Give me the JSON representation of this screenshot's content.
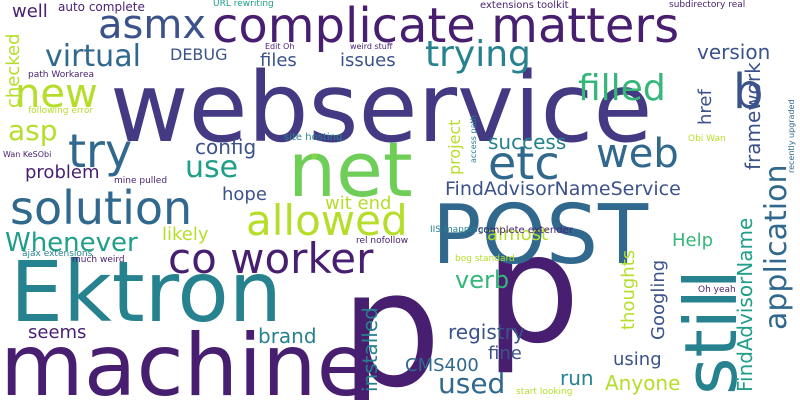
{
  "palette": {
    "purple": "#481f70",
    "indigo": "#443983",
    "blue": "#3b528b",
    "slate": "#31688e",
    "teal": "#26828e",
    "sea": "#1f9e89",
    "green": "#35b779",
    "lime": "#6ece58",
    "yellowgreen": "#b5de2b",
    "yellow": "#d6e21a"
  },
  "words": [
    {
      "text": "p",
      "color": "#481f70"
    },
    {
      "text": "p",
      "color": "#481f70"
    },
    {
      "text": "webservice",
      "color": "#443983"
    },
    {
      "text": "machine",
      "color": "#481f70"
    },
    {
      "text": "Ektron",
      "color": "#26828e"
    },
    {
      "text": "POST",
      "color": "#31688e"
    },
    {
      "text": "still",
      "color": "#26828e"
    },
    {
      "text": "net",
      "color": "#6ece58"
    },
    {
      "text": "complicate matters",
      "color": "#481f70"
    },
    {
      "text": "co worker",
      "color": "#481f70"
    },
    {
      "text": "solution",
      "color": "#31688e"
    },
    {
      "text": "allowed",
      "color": "#b5de2b"
    },
    {
      "text": "try",
      "color": "#31688e"
    },
    {
      "text": "etc",
      "color": "#31688e"
    },
    {
      "text": "web",
      "color": "#31688e"
    },
    {
      "text": "b",
      "color": "#3b528b"
    },
    {
      "text": "asmx",
      "color": "#3b528b"
    },
    {
      "text": "new",
      "color": "#b5de2b"
    },
    {
      "text": "trying",
      "color": "#26828e"
    },
    {
      "text": "filled",
      "color": "#35b779"
    },
    {
      "text": "virtual",
      "color": "#31688e"
    },
    {
      "text": "application",
      "color": "#31688e"
    },
    {
      "text": "Whenever",
      "color": "#1f9e89"
    },
    {
      "text": "asp",
      "color": "#b5de2b"
    },
    {
      "text": "use",
      "color": "#1f9e89"
    },
    {
      "text": "used",
      "color": "#31688e"
    },
    {
      "text": "verb",
      "color": "#35b779"
    },
    {
      "text": "well",
      "color": "#481f70"
    },
    {
      "text": "version",
      "color": "#3b528b"
    },
    {
      "text": "framework",
      "color": "#3b528b"
    },
    {
      "text": "success",
      "color": "#26828e"
    },
    {
      "text": "FindAdvisorNameService",
      "color": "#3b528b"
    },
    {
      "text": "FindAdvisorName",
      "color": "#1f9e89"
    },
    {
      "text": "checked",
      "color": "#b5de2b"
    },
    {
      "text": "config",
      "color": "#3b528b"
    },
    {
      "text": "problem",
      "color": "#481f70"
    },
    {
      "text": "hope",
      "color": "#3b528b"
    },
    {
      "text": "wit end",
      "color": "#b5de2b"
    },
    {
      "text": "likely",
      "color": "#b5de2b"
    },
    {
      "text": "Help",
      "color": "#35b779"
    },
    {
      "text": "brand",
      "color": "#26828e"
    },
    {
      "text": "registry",
      "color": "#3b528b"
    },
    {
      "text": "fine",
      "color": "#3b528b"
    },
    {
      "text": "seems",
      "color": "#481f70"
    },
    {
      "text": "installed",
      "color": "#26828e"
    },
    {
      "text": "CMS400",
      "color": "#31688e"
    },
    {
      "text": "run",
      "color": "#26828e"
    },
    {
      "text": "Anyone",
      "color": "#b5de2b"
    },
    {
      "text": "using",
      "color": "#3b528b"
    },
    {
      "text": "Googling",
      "color": "#3b528b"
    },
    {
      "text": "thoughts",
      "color": "#b5de2b"
    },
    {
      "text": "almost",
      "color": "#b5de2b"
    },
    {
      "text": "project",
      "color": "#b5de2b"
    },
    {
      "text": "files",
      "color": "#3b528b"
    },
    {
      "text": "issues",
      "color": "#3b528b"
    },
    {
      "text": "href",
      "color": "#3b528b"
    },
    {
      "text": "DEBUG",
      "color": "#3b528b"
    },
    {
      "text": "auto complete",
      "color": "#481f70"
    },
    {
      "text": "URL rewriting",
      "color": "#1f9e89"
    },
    {
      "text": "extensions toolkit",
      "color": "#481f70"
    },
    {
      "text": "subdirectory real",
      "color": "#481f70"
    },
    {
      "text": "Edit Oh",
      "color": "#481f70"
    },
    {
      "text": "weird stuff",
      "color": "#481f70"
    },
    {
      "text": "path Workarea",
      "color": "#481f70"
    },
    {
      "text": "following error",
      "color": "#b5de2b"
    },
    {
      "text": "Wan KeSObi",
      "color": "#481f70"
    },
    {
      "text": "site hosting",
      "color": "#26828e"
    },
    {
      "text": "mine pulled",
      "color": "#481f70"
    },
    {
      "text": "ajax extensions",
      "color": "#26828e"
    },
    {
      "text": "much weird",
      "color": "#481f70"
    },
    {
      "text": "IIS mappings",
      "color": "#26828e"
    },
    {
      "text": "complete extender",
      "color": "#481f70"
    },
    {
      "text": "rel nofollow",
      "color": "#481f70"
    },
    {
      "text": "access path",
      "color": "#26828e"
    },
    {
      "text": "Obi Wan",
      "color": "#b5de2b"
    },
    {
      "text": "recently upgraded",
      "color": "#31688e"
    },
    {
      "text": "bog standard",
      "color": "#b5de2b"
    },
    {
      "text": "Oh yeah",
      "color": "#481f70"
    },
    {
      "text": "start looking",
      "color": "#b5de2b"
    },
    {
      "text": "p",
      "color": "#b5de2b"
    }
  ]
}
